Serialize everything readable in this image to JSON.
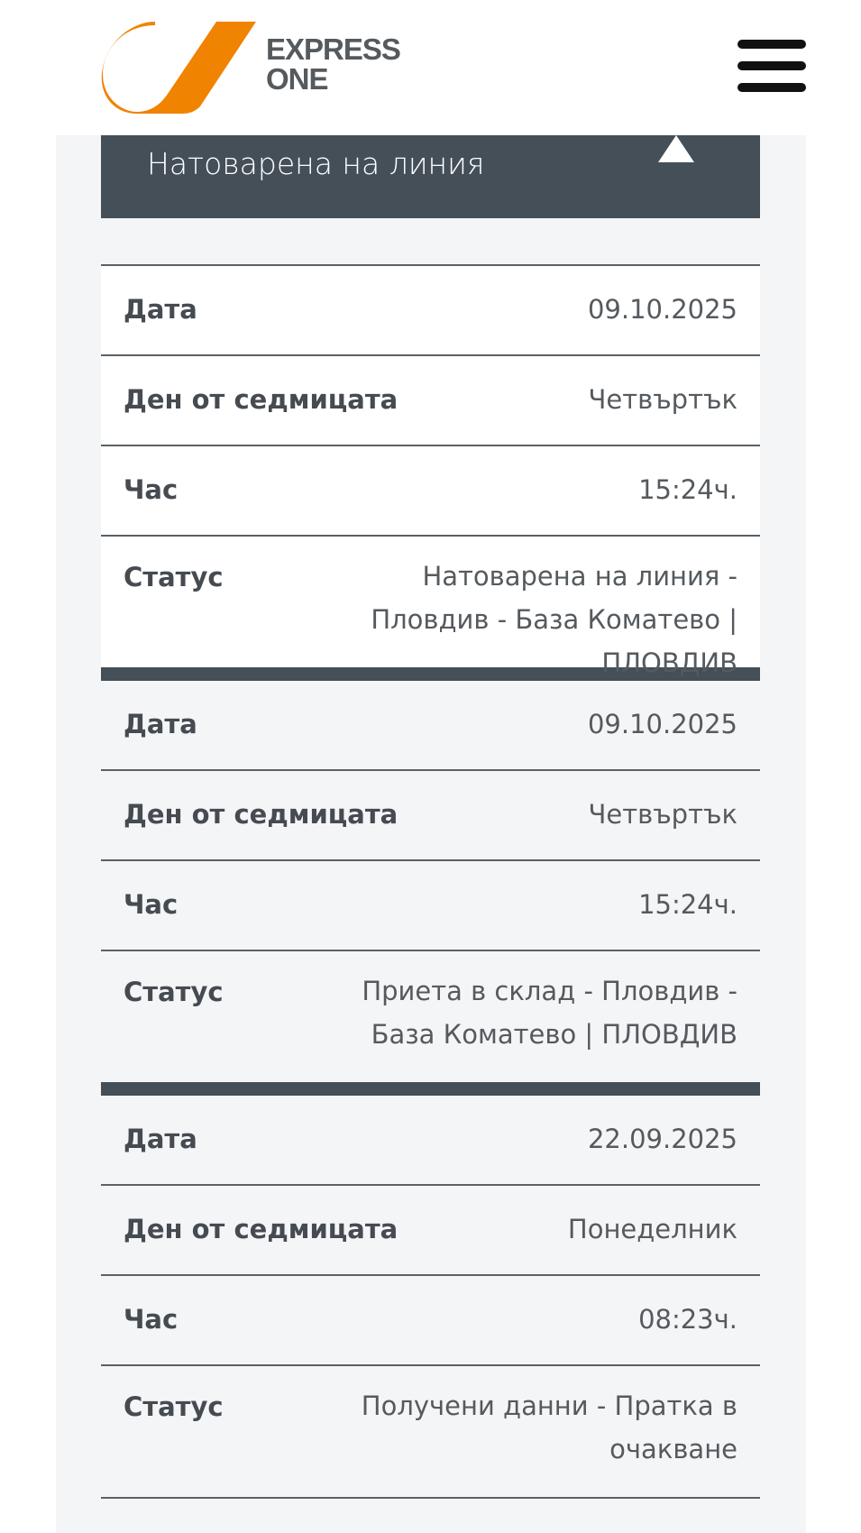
{
  "header": {
    "logo_text": [
      "EXPRESS",
      "ONE"
    ],
    "brand_color": "#f08300",
    "menu_icon": "hamburger-icon"
  },
  "status_panel": {
    "current_status": "Натоварена на линия",
    "toggle_icon": "triangle-up-icon",
    "header_color": "#444f58"
  },
  "labels": {
    "date": "Дата",
    "weekday": "Ден от седмицата",
    "time": "Час",
    "status": "Статус"
  },
  "events": [
    {
      "date": "09.10.2025",
      "weekday": "Четвъртък",
      "time": "15:24ч.",
      "status": "Натоварена на линия - Пловдив - База Коматево | ПЛОВДИВ"
    },
    {
      "date": "09.10.2025",
      "weekday": "Четвъртък",
      "time": "15:24ч.",
      "status": "Приета в склад - Пловдив - База Коматево | ПЛОВДИВ"
    },
    {
      "date": "22.09.2025",
      "weekday": "Понеделник",
      "time": "08:23ч.",
      "status": "Получени данни - Пратка в очакване"
    }
  ]
}
